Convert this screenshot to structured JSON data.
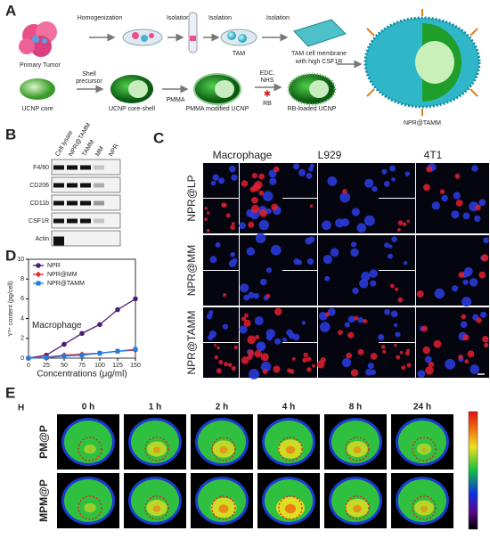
{
  "panel_letters": [
    "A",
    "B",
    "C",
    "D",
    "E"
  ],
  "schematic": {
    "primary_tumor": "Primary Tumor",
    "homogenization": "Homogenization",
    "isolation": [
      "Isolation",
      "Isolation",
      "Isolation"
    ],
    "tam": "TAM",
    "tam_membrane": [
      "TAM cell membrane",
      "with high CSF1R"
    ],
    "ucnp_core": "UCNP core",
    "shell_precursor": [
      "Shell",
      "precursor"
    ],
    "ucnp_core_shell": "UCNP core-shell",
    "pmma": "PMMA",
    "pmma_ucnp": "PMMA modified UCNP",
    "edc_nhs": [
      "EDC,",
      "NHS"
    ],
    "rb": "RB",
    "rb_ucnp": "RB-loaded UCNP",
    "product": "NPR@TAMM"
  },
  "western": {
    "lanes": [
      "Cell lysate",
      "NPR@TAMM",
      "TAMM",
      "MM",
      "NPR"
    ],
    "markers": [
      "F4/80",
      "CD206",
      "CD11b",
      "CSF1R",
      "Actin"
    ]
  },
  "microscopy": {
    "columns": [
      "Macrophage",
      "L929",
      "4T1"
    ],
    "rows": [
      "NPR@LP",
      "NPR@MM",
      "NPR@TAMM"
    ]
  },
  "imaging": {
    "label": "H",
    "times": [
      "0 h",
      "1 h",
      "2 h",
      "4 h",
      "8 h",
      "24 h"
    ],
    "rows": [
      "PM@P",
      "MPM@P"
    ]
  },
  "chart_data": {
    "type": "line",
    "y_label": "Y³⁺ content (pg/cell)",
    "x_label": "Concentrations (μg/ml)",
    "annotation": "Macrophage",
    "x": [
      0,
      25,
      50,
      75,
      100,
      125,
      150
    ],
    "series": [
      {
        "name": "NPR",
        "color": "#4b1f73",
        "marker": "circle",
        "values": [
          0,
          0.3,
          1.4,
          2.5,
          3.4,
          4.9,
          6.0
        ]
      },
      {
        "name": "NPR@MM",
        "color": "#e8262a",
        "marker": "diamond",
        "values": [
          0,
          0.1,
          0.3,
          0.4,
          0.5,
          0.7,
          0.8
        ]
      },
      {
        "name": "NPR@TAMM",
        "color": "#1e7fe0",
        "marker": "square",
        "values": [
          0,
          0.05,
          0.2,
          0.3,
          0.5,
          0.7,
          0.9
        ]
      }
    ],
    "xlim": [
      0,
      150
    ],
    "xticks": [
      0,
      25,
      50,
      75,
      100,
      125,
      150
    ],
    "ylim": [
      0,
      10
    ],
    "yticks": [
      0,
      2,
      4,
      6,
      8,
      10
    ]
  }
}
